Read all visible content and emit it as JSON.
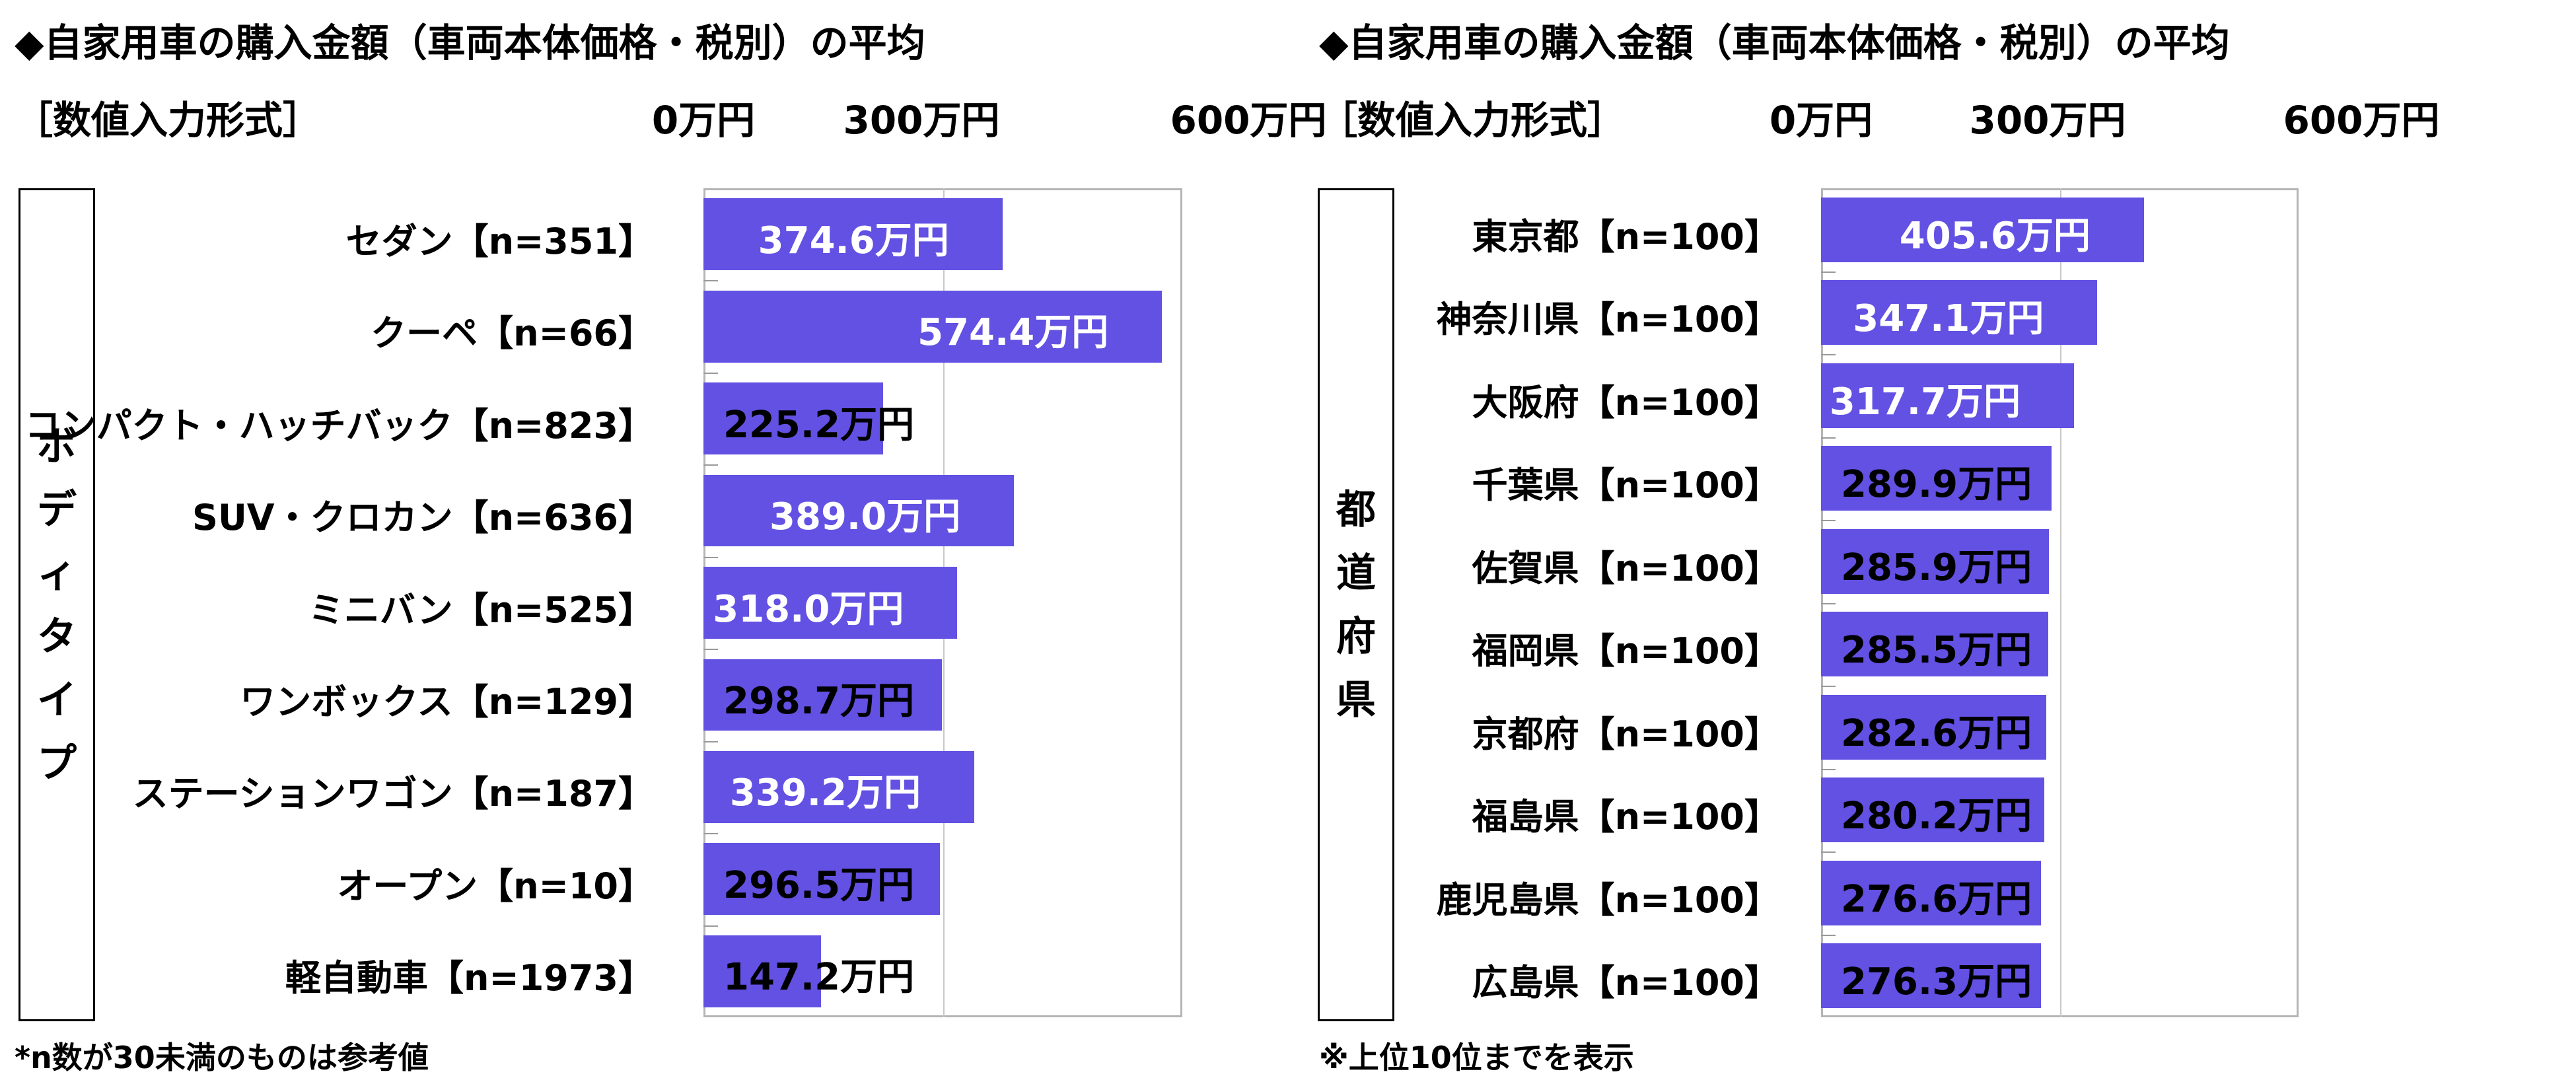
{
  "chart_data": [
    {
      "type": "bar",
      "orientation": "horizontal",
      "title": "◆自家用車の購入金額（車両本体価格・税別）の平均",
      "subtitle": "［数値入力形式］",
      "group_label": "ボディタイプ",
      "tick_labels": [
        "0万円",
        "300万円",
        "600万円"
      ],
      "xlim": [
        0,
        600
      ],
      "categories": [
        "セダン【n=351】",
        "クーペ【n=66】",
        "コンパクト・ハッチバック【n=823】",
        "SUV・クロカン【n=636】",
        "ミニバン【n=525】",
        "ワンボックス【n=129】",
        "ステーションワゴン【n=187】",
        "オープン【n=10】",
        "軽自動車【n=1973】"
      ],
      "values": [
        374.6,
        574.4,
        225.2,
        389.0,
        318.0,
        298.7,
        339.2,
        296.5,
        147.2
      ],
      "value_labels": [
        "374.6万円",
        "574.4万円",
        "225.2万円",
        "389.0万円",
        "318.0万円",
        "298.7万円",
        "339.2万円",
        "296.5万円",
        "147.2万円"
      ],
      "bar_color": "#6251e3",
      "footnote": "*n数が30未満のものは参考値"
    },
    {
      "type": "bar",
      "orientation": "horizontal",
      "title": "◆自家用車の購入金額（車両本体価格・税別）の平均",
      "subtitle": "［数値入力形式］",
      "group_label": "都道府県",
      "tick_labels": [
        "0万円",
        "300万円",
        "600万円"
      ],
      "xlim": [
        0,
        600
      ],
      "categories": [
        "東京都【n=100】",
        "神奈川県【n=100】",
        "大阪府【n=100】",
        "千葉県【n=100】",
        "佐賀県【n=100】",
        "福岡県【n=100】",
        "京都府【n=100】",
        "福島県【n=100】",
        "鹿児島県【n=100】",
        "広島県【n=100】"
      ],
      "values": [
        405.6,
        347.1,
        317.7,
        289.9,
        285.9,
        285.5,
        282.6,
        280.2,
        276.6,
        276.3
      ],
      "value_labels": [
        "405.6万円",
        "347.1万円",
        "317.7万円",
        "289.9万円",
        "285.9万円",
        "285.5万円",
        "282.6万円",
        "280.2万円",
        "276.6万円",
        "276.3万円"
      ],
      "bar_color": "#6251e3",
      "footnote": "※上位10位までを表示"
    }
  ]
}
